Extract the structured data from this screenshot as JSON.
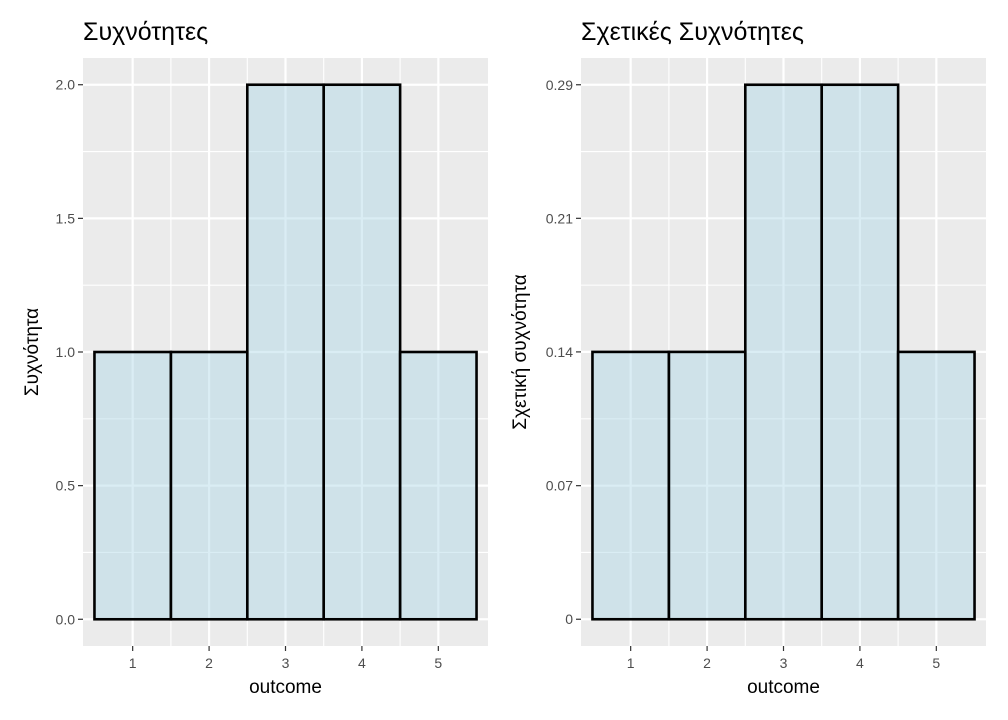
{
  "chart_data": [
    {
      "type": "bar",
      "title": "Συχνότητες",
      "xlabel": "outcome",
      "ylabel": "Συχνότητα",
      "categories": [
        "1",
        "2",
        "3",
        "4",
        "5"
      ],
      "values": [
        1,
        1,
        2,
        2,
        1
      ],
      "xlim": [
        0.35,
        5.65
      ],
      "ylim": [
        -0.1,
        2.1
      ],
      "yticks": [
        0,
        0.5,
        1,
        1.5,
        2
      ],
      "ytick_labels": [
        "0.0",
        "0.5",
        "1.0",
        "1.5",
        "2.0"
      ],
      "grid": true,
      "colors": {
        "bar_fill": "#add8e6",
        "bar_outline": "#000000",
        "panel": "#ebebeb"
      }
    },
    {
      "type": "bar",
      "title": "Σχετικές Συχνότητες",
      "xlabel": "outcome",
      "ylabel": "Σχετική συχνότητα",
      "categories": [
        "1",
        "2",
        "3",
        "4",
        "5"
      ],
      "values": [
        0.1429,
        0.1429,
        0.2857,
        0.2857,
        0.1429
      ],
      "xlim": [
        0.35,
        5.65
      ],
      "ylim": [
        -0.0143,
        0.3
      ],
      "yticks": [
        0,
        0.0714,
        0.1429,
        0.2143,
        0.2857
      ],
      "ytick_labels": [
        "0",
        "0.07",
        "0.14",
        "0.21",
        "0.29"
      ],
      "grid": true,
      "colors": {
        "bar_fill": "#add8e6",
        "bar_outline": "#000000",
        "panel": "#ebebeb"
      }
    }
  ]
}
